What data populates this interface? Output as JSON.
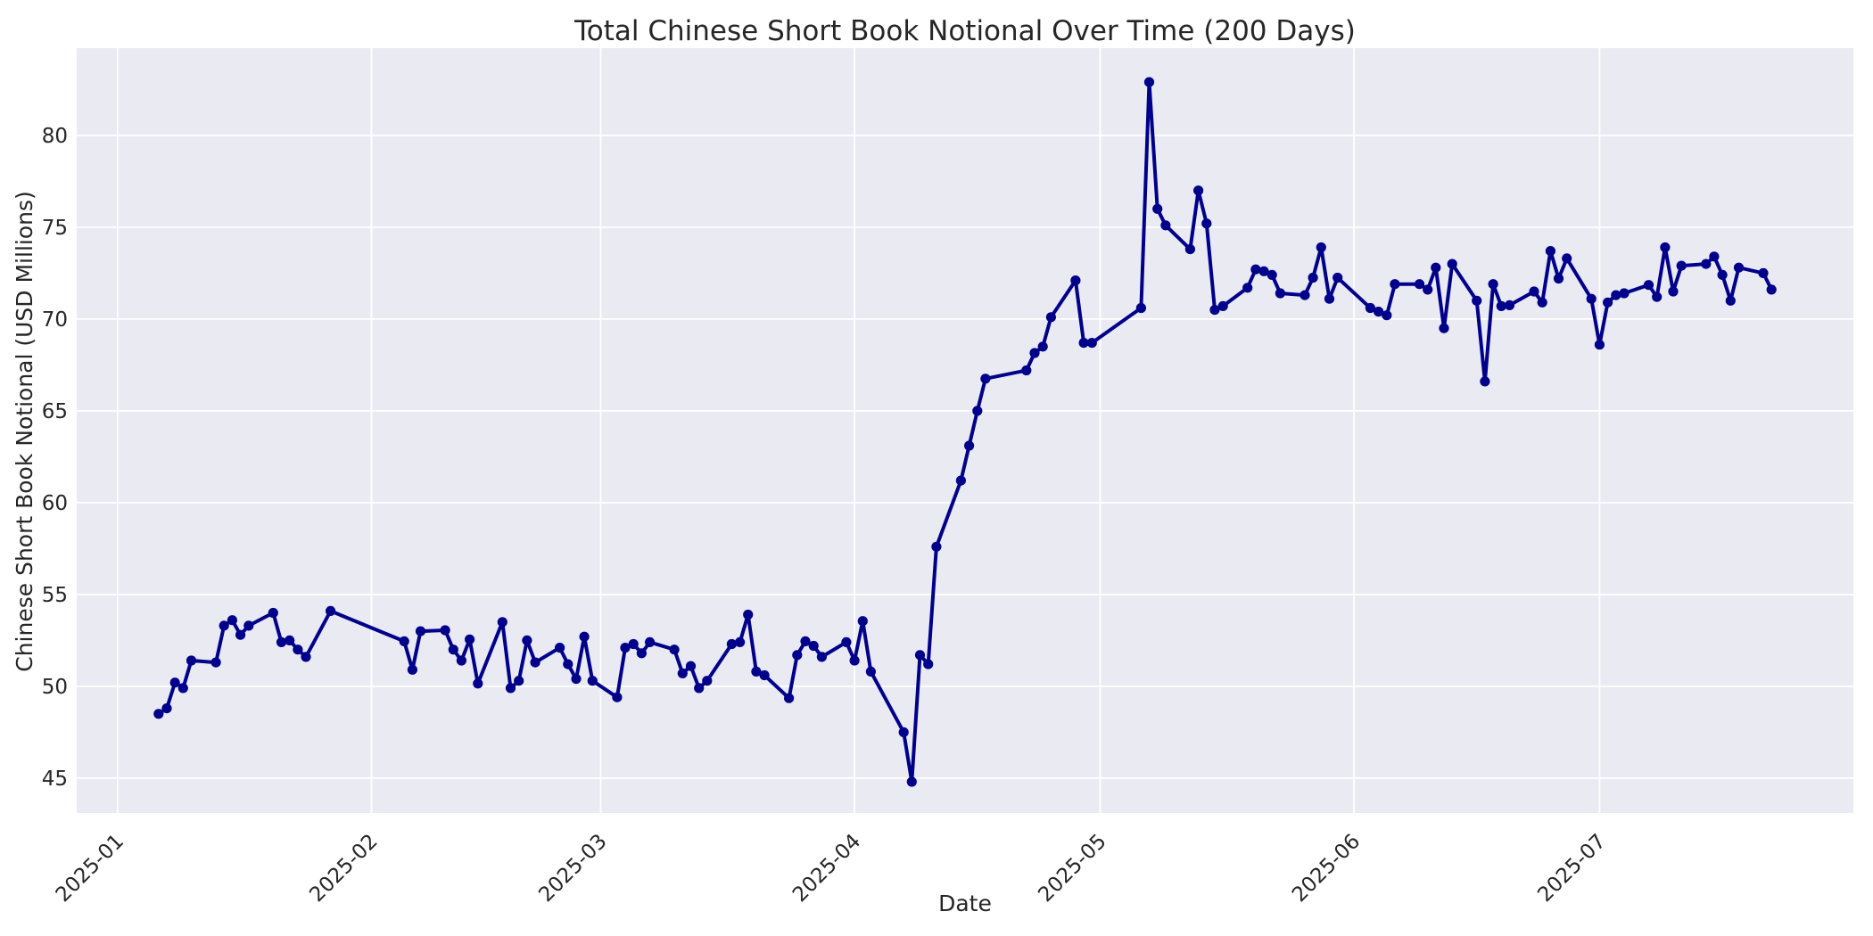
{
  "style": {
    "figure_bg": "#ffffff",
    "plot_bg": "#eaeaf2",
    "grid_color": "#ffffff",
    "text_color": "#262626",
    "line_color": "#00008b"
  },
  "chart_data": {
    "type": "line",
    "title": "Total Chinese Short Book Notional Over Time (200 Days)",
    "xlabel": "Date",
    "ylabel": "Chinese Short Book Notional (USD Millions)",
    "grid": true,
    "legend_position": "none",
    "marker": "circle",
    "y_ticks": [
      45,
      50,
      55,
      60,
      65,
      70,
      75,
      80
    ],
    "ylim": [
      43.1,
      84.75
    ],
    "x_tick_labels": [
      "2025-01",
      "2025-02",
      "2025-03",
      "2025-04",
      "2025-05",
      "2025-06",
      "2025-07"
    ],
    "x_tick_dates": [
      "2025-01-01",
      "2025-02-01",
      "2025-03-01",
      "2025-04-01",
      "2025-05-01",
      "2025-06-01",
      "2025-07-01"
    ],
    "xlim_dates": [
      "2024-12-27",
      "2025-08-01"
    ],
    "series": [
      {
        "name": "Total Chinese Short Book Notional",
        "color": "#00008b",
        "points": [
          [
            "2025-01-06",
            48.5
          ],
          [
            "2025-01-07",
            48.8
          ],
          [
            "2025-01-08",
            50.2
          ],
          [
            "2025-01-09",
            49.9
          ],
          [
            "2025-01-10",
            51.4
          ],
          [
            "2025-01-13",
            51.3
          ],
          [
            "2025-01-14",
            53.3
          ],
          [
            "2025-01-15",
            53.6
          ],
          [
            "2025-01-16",
            52.8
          ],
          [
            "2025-01-17",
            53.3
          ],
          [
            "2025-01-20",
            54.0
          ],
          [
            "2025-01-21",
            52.4
          ],
          [
            "2025-01-22",
            52.5
          ],
          [
            "2025-01-23",
            52.0
          ],
          [
            "2025-01-24",
            51.6
          ],
          [
            "2025-01-27",
            54.1
          ],
          [
            "2025-02-05",
            52.45
          ],
          [
            "2025-02-06",
            50.9
          ],
          [
            "2025-02-07",
            53.0
          ],
          [
            "2025-02-10",
            53.05
          ],
          [
            "2025-02-11",
            52.0
          ],
          [
            "2025-02-12",
            51.4
          ],
          [
            "2025-02-13",
            52.55
          ],
          [
            "2025-02-14",
            50.15
          ],
          [
            "2025-02-17",
            53.5
          ],
          [
            "2025-02-18",
            49.9
          ],
          [
            "2025-02-19",
            50.3
          ],
          [
            "2025-02-20",
            52.5
          ],
          [
            "2025-02-21",
            51.3
          ],
          [
            "2025-02-24",
            52.1
          ],
          [
            "2025-02-25",
            51.2
          ],
          [
            "2025-02-26",
            50.4
          ],
          [
            "2025-02-27",
            52.7
          ],
          [
            "2025-02-28",
            50.3
          ],
          [
            "2025-03-03",
            49.4
          ],
          [
            "2025-03-04",
            52.1
          ],
          [
            "2025-03-05",
            52.3
          ],
          [
            "2025-03-06",
            51.8
          ],
          [
            "2025-03-07",
            52.4
          ],
          [
            "2025-03-10",
            52.0
          ],
          [
            "2025-03-11",
            50.7
          ],
          [
            "2025-03-12",
            51.1
          ],
          [
            "2025-03-13",
            49.9
          ],
          [
            "2025-03-14",
            50.3
          ],
          [
            "2025-03-17",
            52.3
          ],
          [
            "2025-03-18",
            52.4
          ],
          [
            "2025-03-19",
            53.9
          ],
          [
            "2025-03-20",
            50.8
          ],
          [
            "2025-03-21",
            50.6
          ],
          [
            "2025-03-24",
            49.35
          ],
          [
            "2025-03-25",
            51.7
          ],
          [
            "2025-03-26",
            52.45
          ],
          [
            "2025-03-27",
            52.2
          ],
          [
            "2025-03-28",
            51.6
          ],
          [
            "2025-03-31",
            52.4
          ],
          [
            "2025-04-01",
            51.4
          ],
          [
            "2025-04-02",
            53.55
          ],
          [
            "2025-04-03",
            50.8
          ],
          [
            "2025-04-07",
            47.5
          ],
          [
            "2025-04-08",
            44.8
          ],
          [
            "2025-04-09",
            51.7
          ],
          [
            "2025-04-10",
            51.2
          ],
          [
            "2025-04-11",
            57.6
          ],
          [
            "2025-04-14",
            61.2
          ],
          [
            "2025-04-15",
            63.1
          ],
          [
            "2025-04-16",
            65.0
          ],
          [
            "2025-04-17",
            66.75
          ],
          [
            "2025-04-22",
            67.2
          ],
          [
            "2025-04-23",
            68.15
          ],
          [
            "2025-04-24",
            68.5
          ],
          [
            "2025-04-25",
            70.1
          ],
          [
            "2025-04-28",
            72.1
          ],
          [
            "2025-04-29",
            68.7
          ],
          [
            "2025-04-30",
            68.7
          ],
          [
            "2025-05-06",
            70.6
          ],
          [
            "2025-05-07",
            82.9
          ],
          [
            "2025-05-08",
            76.0
          ],
          [
            "2025-05-09",
            75.1
          ],
          [
            "2025-05-12",
            73.8
          ],
          [
            "2025-05-13",
            77.0
          ],
          [
            "2025-05-14",
            75.2
          ],
          [
            "2025-05-15",
            70.5
          ],
          [
            "2025-05-16",
            70.7
          ],
          [
            "2025-05-19",
            71.7
          ],
          [
            "2025-05-20",
            72.7
          ],
          [
            "2025-05-21",
            72.6
          ],
          [
            "2025-05-22",
            72.4
          ],
          [
            "2025-05-23",
            71.4
          ],
          [
            "2025-05-26",
            71.3
          ],
          [
            "2025-05-27",
            72.25
          ],
          [
            "2025-05-28",
            73.9
          ],
          [
            "2025-05-29",
            71.1
          ],
          [
            "2025-05-30",
            72.25
          ],
          [
            "2025-06-03",
            70.6
          ],
          [
            "2025-06-04",
            70.4
          ],
          [
            "2025-06-05",
            70.2
          ],
          [
            "2025-06-06",
            71.9
          ],
          [
            "2025-06-09",
            71.9
          ],
          [
            "2025-06-10",
            71.6
          ],
          [
            "2025-06-11",
            72.8
          ],
          [
            "2025-06-12",
            69.5
          ],
          [
            "2025-06-13",
            73.0
          ],
          [
            "2025-06-16",
            71.0
          ],
          [
            "2025-06-17",
            66.6
          ],
          [
            "2025-06-18",
            71.9
          ],
          [
            "2025-06-19",
            70.7
          ],
          [
            "2025-06-20",
            70.75
          ],
          [
            "2025-06-23",
            71.5
          ],
          [
            "2025-06-24",
            70.9
          ],
          [
            "2025-06-25",
            73.7
          ],
          [
            "2025-06-26",
            72.2
          ],
          [
            "2025-06-27",
            73.3
          ],
          [
            "2025-06-30",
            71.1
          ],
          [
            "2025-07-01",
            68.6
          ],
          [
            "2025-07-02",
            70.9
          ],
          [
            "2025-07-03",
            71.3
          ],
          [
            "2025-07-04",
            71.4
          ],
          [
            "2025-07-07",
            71.85
          ],
          [
            "2025-07-08",
            71.2
          ],
          [
            "2025-07-09",
            73.9
          ],
          [
            "2025-07-10",
            71.5
          ],
          [
            "2025-07-11",
            72.9
          ],
          [
            "2025-07-14",
            73.0
          ],
          [
            "2025-07-15",
            73.4
          ],
          [
            "2025-07-16",
            72.4
          ],
          [
            "2025-07-17",
            71.0
          ],
          [
            "2025-07-18",
            72.8
          ],
          [
            "2025-07-21",
            72.5
          ],
          [
            "2025-07-22",
            71.6
          ]
        ]
      }
    ]
  }
}
